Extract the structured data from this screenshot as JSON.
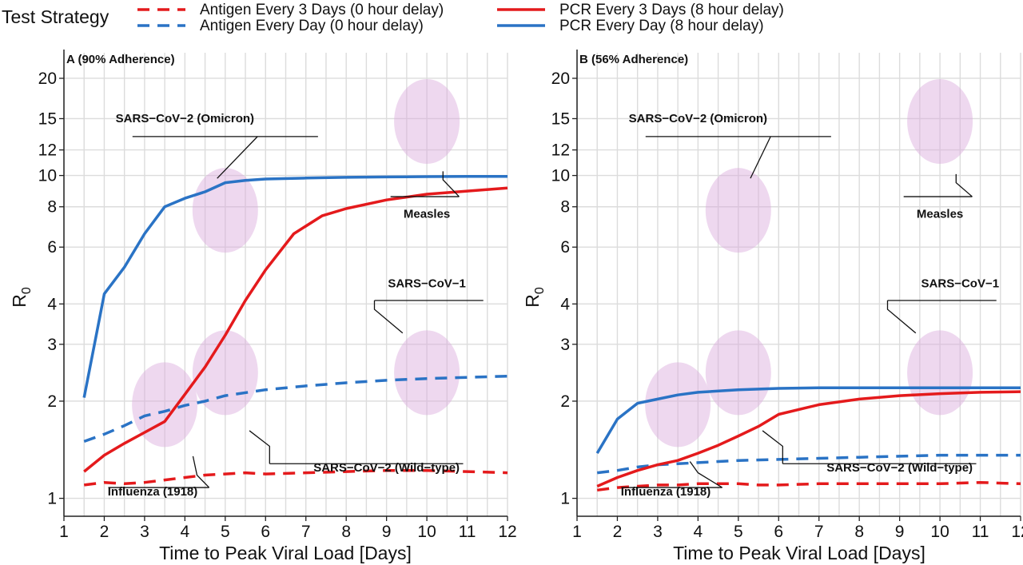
{
  "legend": {
    "title": "Test Strategy",
    "entries": [
      {
        "label": "Antigen Every 3 Days (0 hour delay)",
        "color": "#e41a1c",
        "dashed": true
      },
      {
        "label": "Antigen Every Day (0 hour delay)",
        "color": "#2a73c5",
        "dashed": true
      },
      {
        "label": "PCR Every 3 Days (8 hour delay)",
        "color": "#e41a1c",
        "dashed": false
      },
      {
        "label": "PCR Every Day (8 hour delay)",
        "color": "#2a73c5",
        "dashed": false
      }
    ]
  },
  "chart_data": [
    {
      "type": "line",
      "title": "A (90% Adherence)",
      "xlabel": "Time to Peak Viral Load [Days]",
      "ylabel": "R",
      "ylabel_subscript": "0",
      "y_scale": "log",
      "xlim": [
        1,
        12
      ],
      "ylim": [
        0.88,
        24
      ],
      "x_ticks": [
        1,
        2,
        3,
        4,
        5,
        6,
        7,
        8,
        9,
        10,
        11,
        12
      ],
      "y_ticks": [
        1,
        2,
        3,
        4,
        6,
        8,
        10,
        12,
        15,
        20
      ],
      "grid": true,
      "series": [
        {
          "name": "Antigen Every 3 Days (0 hour delay)",
          "x": [
            1.5,
            2,
            2.5,
            3,
            3.5,
            4,
            4.5,
            5,
            5.5,
            6,
            7,
            8,
            9,
            10,
            11,
            12
          ],
          "y": [
            1.1,
            1.12,
            1.11,
            1.12,
            1.14,
            1.16,
            1.18,
            1.19,
            1.2,
            1.19,
            1.2,
            1.21,
            1.22,
            1.22,
            1.21,
            1.2
          ]
        },
        {
          "name": "Antigen Every Day (0 hour delay)",
          "x": [
            1.5,
            2,
            2.5,
            3,
            3.5,
            4,
            4.5,
            5,
            6,
            7,
            8,
            9,
            10,
            11,
            12
          ],
          "y": [
            1.5,
            1.58,
            1.68,
            1.8,
            1.86,
            1.94,
            2.0,
            2.08,
            2.17,
            2.23,
            2.28,
            2.32,
            2.35,
            2.37,
            2.39
          ]
        },
        {
          "name": "PCR Every 3 Days (8 hour delay)",
          "x": [
            1.5,
            2,
            2.5,
            3,
            3.5,
            4,
            4.5,
            5,
            5.5,
            6,
            6.7,
            7.4,
            8,
            9,
            10,
            11,
            12
          ],
          "y": [
            1.21,
            1.36,
            1.48,
            1.6,
            1.73,
            2.1,
            2.55,
            3.2,
            4.1,
            5.1,
            6.6,
            7.5,
            7.9,
            8.4,
            8.75,
            8.95,
            9.15
          ]
        },
        {
          "name": "PCR Every Day (8 hour delay)",
          "x": [
            1.5,
            2,
            2.5,
            3,
            3.5,
            4,
            4.5,
            5,
            5.5,
            6,
            7,
            8,
            9,
            10,
            11,
            12
          ],
          "y": [
            2.05,
            4.3,
            5.2,
            6.6,
            8.0,
            8.5,
            8.9,
            9.5,
            9.65,
            9.75,
            9.82,
            9.87,
            9.9,
            9.92,
            9.93,
            9.94
          ]
        }
      ],
      "annotations": [
        {
          "text": "SARS−CoV−2 (Omicron)"
        },
        {
          "text": "Measles"
        },
        {
          "text": "SARS−CoV−1"
        },
        {
          "text": "SARS−CoV−2 (Wild−type)"
        },
        {
          "text": "Influenza (1918)"
        }
      ]
    },
    {
      "type": "line",
      "title": "B (56% Adherence)",
      "xlabel": "Time to Peak Viral Load [Days]",
      "ylabel": "R",
      "ylabel_subscript": "0",
      "y_scale": "log",
      "xlim": [
        1,
        12
      ],
      "ylim": [
        0.88,
        24
      ],
      "x_ticks": [
        1,
        2,
        3,
        4,
        5,
        6,
        7,
        8,
        9,
        10,
        11,
        12
      ],
      "y_ticks": [
        1,
        2,
        3,
        4,
        6,
        8,
        10,
        12,
        15,
        20
      ],
      "grid": true,
      "series": [
        {
          "name": "Antigen Every 3 Days (0 hour delay)",
          "x": [
            1.5,
            2,
            2.5,
            3,
            3.5,
            4,
            4.5,
            5,
            5.5,
            6,
            7,
            8,
            9,
            10,
            11,
            12
          ],
          "y": [
            1.06,
            1.08,
            1.09,
            1.1,
            1.1,
            1.11,
            1.11,
            1.11,
            1.1,
            1.1,
            1.11,
            1.11,
            1.11,
            1.11,
            1.12,
            1.11
          ]
        },
        {
          "name": "Antigen Every Day (0 hour delay)",
          "x": [
            1.5,
            2,
            2.5,
            3,
            3.5,
            4,
            5,
            6,
            7,
            8,
            9,
            10,
            11,
            12
          ],
          "y": [
            1.2,
            1.22,
            1.25,
            1.27,
            1.28,
            1.29,
            1.31,
            1.32,
            1.33,
            1.34,
            1.35,
            1.36,
            1.36,
            1.36
          ]
        },
        {
          "name": "PCR Every 3 Days (8 hour delay)",
          "x": [
            1.5,
            2,
            2.5,
            3,
            3.5,
            4,
            4.5,
            5,
            5.5,
            6,
            7,
            8,
            9,
            10,
            11,
            12
          ],
          "y": [
            1.09,
            1.16,
            1.22,
            1.27,
            1.31,
            1.38,
            1.46,
            1.56,
            1.67,
            1.82,
            1.95,
            2.03,
            2.08,
            2.11,
            2.13,
            2.14
          ]
        },
        {
          "name": "PCR Every Day (8 hour delay)",
          "x": [
            1.5,
            2,
            2.5,
            3,
            3.5,
            4,
            5,
            6,
            7,
            8,
            9,
            10,
            11,
            12
          ],
          "y": [
            1.38,
            1.76,
            1.97,
            2.03,
            2.09,
            2.13,
            2.17,
            2.19,
            2.2,
            2.2,
            2.2,
            2.2,
            2.2,
            2.2
          ]
        }
      ],
      "annotations": [
        {
          "text": "SARS−CoV−2 (Omicron)"
        },
        {
          "text": "Measles"
        },
        {
          "text": "SARS−CoV−1"
        },
        {
          "text": "SARS−CoV−2 (Wild−type)"
        },
        {
          "text": "Influenza (1918)"
        }
      ]
    }
  ]
}
